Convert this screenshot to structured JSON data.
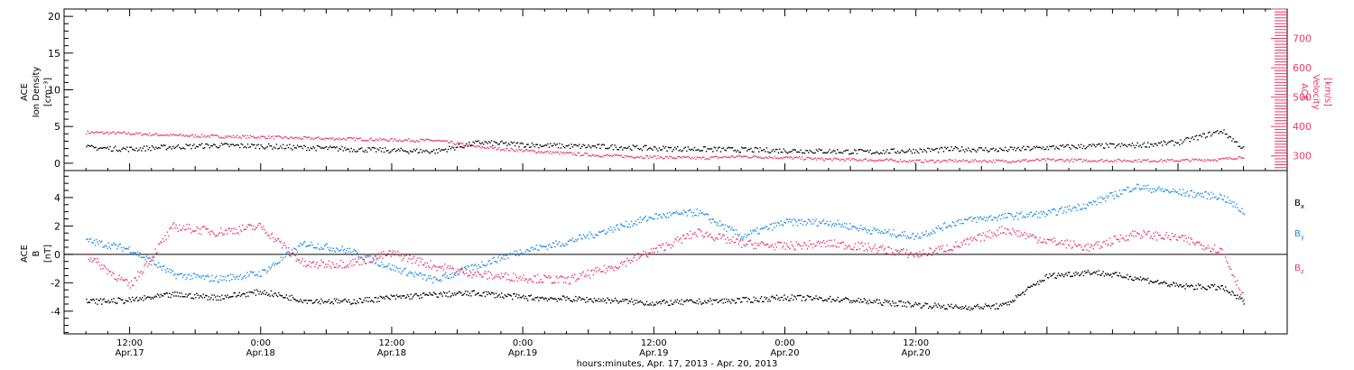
{
  "chart_data": [
    {
      "type": "scatter",
      "panel": "top",
      "ylabel_left": [
        "ACE",
        "Ion Density",
        "[cm⁻³]"
      ],
      "ylabel_right": [
        "ACE",
        "Velocity",
        "[km/s]"
      ],
      "ylim_left": [
        -1,
        21
      ],
      "yticks_left": [
        0,
        5,
        10,
        15,
        20
      ],
      "ylim_right": [
        250,
        800
      ],
      "yticks_right": [
        300,
        400,
        500,
        600,
        700
      ],
      "colors": {
        "density": "#000000",
        "velocity": "#e8386a"
      },
      "series": [
        {
          "name": "Ion Density",
          "axis": "left",
          "x": [
            -16,
            -12,
            -8,
            -4,
            0,
            4,
            8,
            12,
            16,
            20,
            24,
            28,
            32,
            36,
            40,
            44,
            48,
            52,
            56,
            60,
            64,
            68,
            72,
            76,
            80,
            84,
            88,
            90
          ],
          "y": [
            2.2,
            2.0,
            2.3,
            2.5,
            2.4,
            2.2,
            2.0,
            1.8,
            1.7,
            2.9,
            2.6,
            2.4,
            2.3,
            2.1,
            2.0,
            1.9,
            1.8,
            1.7,
            1.6,
            1.8,
            2.0,
            1.9,
            2.2,
            2.4,
            2.5,
            2.9,
            4.5,
            2.0
          ]
        },
        {
          "name": "Velocity",
          "axis": "right",
          "x": [
            -16,
            -12,
            -8,
            -4,
            0,
            4,
            8,
            12,
            16,
            20,
            24,
            28,
            32,
            36,
            40,
            44,
            48,
            52,
            56,
            60,
            64,
            68,
            72,
            76,
            80,
            84,
            88,
            90
          ],
          "y": [
            382,
            378,
            372,
            368,
            366,
            362,
            360,
            356,
            354,
            332,
            320,
            310,
            302,
            298,
            294,
            300,
            296,
            290,
            288,
            284,
            285,
            284,
            288,
            286,
            286,
            286,
            290,
            300
          ]
        }
      ]
    },
    {
      "type": "scatter",
      "panel": "bottom",
      "ylabel": [
        "ACE",
        "B",
        "[nT]"
      ],
      "ylim": [
        -5.6,
        5.9
      ],
      "yticks": [
        -4,
        -2,
        0,
        2,
        4
      ],
      "legend": [
        "Bx",
        "By",
        "Bz"
      ],
      "legend_position": "right",
      "colors": {
        "Bx": "#000000",
        "By": "#1e8ae6",
        "Bz": "#e8386a"
      },
      "series": [
        {
          "name": "Bx",
          "x": [
            -16,
            -12,
            -8,
            -4,
            0,
            4,
            8,
            12,
            16,
            20,
            24,
            28,
            32,
            36,
            40,
            44,
            48,
            52,
            56,
            60,
            64,
            68,
            72,
            76,
            80,
            84,
            88,
            90
          ],
          "y": [
            -3.3,
            -3.2,
            -2.8,
            -3.0,
            -2.6,
            -3.2,
            -3.3,
            -3.0,
            -2.8,
            -2.7,
            -3.0,
            -3.1,
            -3.2,
            -3.4,
            -3.3,
            -3.2,
            -3.0,
            -3.1,
            -3.3,
            -3.5,
            -3.7,
            -3.6,
            -1.5,
            -1.2,
            -1.6,
            -2.2,
            -2.3,
            -3.3
          ]
        },
        {
          "name": "By",
          "x": [
            -16,
            -12,
            -8,
            -4,
            0,
            4,
            8,
            12,
            16,
            20,
            24,
            28,
            32,
            36,
            40,
            44,
            48,
            52,
            56,
            60,
            64,
            68,
            72,
            76,
            80,
            84,
            88,
            90
          ],
          "y": [
            1.0,
            0.4,
            -1.4,
            -1.7,
            -1.3,
            0.8,
            0.3,
            -0.9,
            -1.8,
            -0.7,
            0.3,
            0.9,
            1.8,
            2.7,
            3.0,
            1.3,
            2.3,
            2.3,
            1.7,
            1.3,
            2.4,
            2.7,
            2.9,
            3.6,
            4.8,
            4.4,
            4.1,
            3.0
          ]
        },
        {
          "name": "Bz",
          "x": [
            -16,
            -12,
            -8,
            -4,
            0,
            4,
            8,
            12,
            16,
            20,
            24,
            28,
            32,
            36,
            40,
            44,
            48,
            52,
            56,
            60,
            64,
            68,
            72,
            76,
            80,
            84,
            88,
            90
          ],
          "y": [
            0.0,
            -2.2,
            2.0,
            1.6,
            2.0,
            -0.7,
            -0.6,
            0.1,
            -0.8,
            -1.4,
            -1.6,
            -1.8,
            -0.9,
            0.3,
            1.6,
            0.8,
            0.6,
            0.8,
            0.5,
            0.0,
            0.7,
            1.8,
            1.0,
            0.5,
            1.5,
            1.2,
            0.3,
            -3.0
          ]
        }
      ]
    }
  ],
  "xaxis": {
    "xlim": [
      -18,
      94
    ],
    "tick_times": [
      "12:00",
      "0:00",
      "12:00",
      "0:00",
      "12:00",
      "0:00",
      "12:00"
    ],
    "tick_dates": [
      "Apr.17",
      "Apr.18",
      "Apr.18",
      "Apr.19",
      "Apr.19",
      "Apr.20",
      "Apr.20"
    ],
    "tick_hours": [
      -12,
      0,
      12,
      24,
      36,
      48,
      60
    ],
    "xlabel": "hours:minutes, Apr. 17, 2013 - Apr. 20, 2013"
  },
  "legend_labels": {
    "bx": "B",
    "bx_sub": "x",
    "by": "B",
    "by_sub": "y",
    "bz": "B",
    "bz_sub": "z"
  }
}
